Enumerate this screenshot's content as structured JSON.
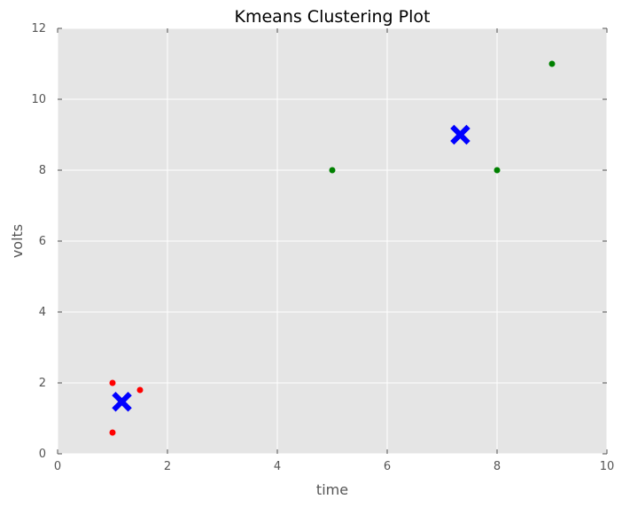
{
  "chart_data": {
    "type": "scatter",
    "title": "Kmeans Clustering Plot",
    "xlabel": "time",
    "ylabel": "volts",
    "xlim": [
      0,
      10
    ],
    "ylim": [
      0,
      12
    ],
    "xticks": [
      0,
      2,
      4,
      6,
      8,
      10
    ],
    "yticks": [
      0,
      2,
      4,
      6,
      8,
      10,
      12
    ],
    "grid": true,
    "background_color": "#e5e5e5",
    "grid_color": "#ffffff",
    "series": [
      {
        "color": "#ff0000",
        "marker": "circle",
        "points": [
          {
            "x": 1.0,
            "y": 2.0
          },
          {
            "x": 1.5,
            "y": 1.8
          },
          {
            "x": 1.0,
            "y": 0.6
          }
        ]
      },
      {
        "color": "#008000",
        "marker": "circle",
        "points": [
          {
            "x": 5.0,
            "y": 8.0
          },
          {
            "x": 8.0,
            "y": 8.0
          },
          {
            "x": 9.0,
            "y": 11.0
          }
        ]
      },
      {
        "color": "#0000ff",
        "marker": "x",
        "points": [
          {
            "x": 1.17,
            "y": 1.47
          },
          {
            "x": 7.33,
            "y": 9.0
          }
        ]
      }
    ]
  }
}
